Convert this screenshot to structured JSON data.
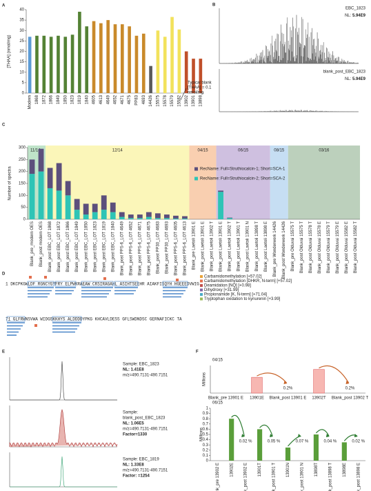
{
  "chart_data": [
    {
      "type": "bar",
      "panel": "A",
      "ylabel": "[THAA] (nmol/mg)",
      "categories": [
        "Modern",
        "1868",
        "1872",
        "1866",
        "1849",
        "1850",
        "1823",
        "1819",
        "1840",
        "4605",
        "4613",
        "4649",
        "4652",
        "4671",
        "4675",
        "PP83",
        "4693",
        "14426",
        "15575",
        "15578",
        "15579",
        "15582",
        "13902",
        "13901",
        "13898"
      ],
      "values": [
        27,
        27.5,
        27.5,
        27,
        27.5,
        27,
        28,
        39,
        32,
        34.5,
        33.5,
        35,
        33,
        33,
        32,
        27.5,
        28.5,
        13,
        30,
        27,
        36.5,
        30.5,
        20,
        16.5,
        16.5
      ],
      "colors": [
        "#5b9bd5",
        "#548235",
        "#548235",
        "#548235",
        "#548235",
        "#548235",
        "#548235",
        "#548235",
        "#548235",
        "#c98a2b",
        "#c98a2b",
        "#c98a2b",
        "#c98a2b",
        "#c98a2b",
        "#c98a2b",
        "#c98a2b",
        "#c98a2b",
        "#595959",
        "#f2e25c",
        "#f2e25c",
        "#f2e25c",
        "#f2e25c",
        "#c0502a",
        "#c0502a",
        "#c0502a"
      ],
      "ylim": [
        0,
        40
      ],
      "yticks": [
        0,
        5,
        10,
        15,
        20,
        25,
        30,
        35,
        40
      ],
      "annotation": [
        "Typical blank",
        "[THAA] = 0.1",
        "nmol/mg"
      ]
    },
    {
      "type": "trace",
      "panel": "B",
      "traces": [
        {
          "name": "EBC_1823",
          "nl_label": "NL:",
          "nl": "5.94E9"
        },
        {
          "name": "blank_post_EBC_1823",
          "nl_label": "NL:",
          "nl": "5.94E9"
        }
      ]
    },
    {
      "type": "stacked-bar",
      "panel": "C",
      "ylabel": "Number of spectra",
      "categories": [
        "Blank_pre_modern OES",
        "Blank_post modern OES",
        "Blank_post EBC_LOT 1868",
        "Blank_post EBC_LOT 1872",
        "Blank_post EBC_LOT 1866",
        "Blank_post EBC_LOT 1849",
        "Blank_post EBC_LOT 1850",
        "Blank_post EBC_LOT 1823",
        "Blank_post EBC_LOT 1819",
        "Blank_post EBC_LOT 1840",
        "Blank_post PPS-6_LOT 4649",
        "Blank_post PPS-6_LOT 4652",
        "Blank_post PPS-6_LOT 4671",
        "Blank_post PPS-6_LOT 4675",
        "Blank_post PP30_LOT 4683",
        "Blank_post PP30_LOT 4693",
        "Blank_post PPS-6_LOT 4605",
        "Blank_post PPS-6_LOT 4613",
        "Blank_pre Laetoli 13901 E",
        "Blank_post Laetoli 13901 E",
        "Blank_post Laetoli 13902 T",
        "Blank_post Laetoli 13901 E",
        "Blank_post Laetoli 13902 T",
        "Blank_post Laetoli 13901 T",
        "Blank_post Laetoli 13901 N",
        "Blank_post Laetoli 13898 T",
        "Blank_post Laetoli 13898 E",
        "Blank_pre Wonderwerk 14426",
        "Blank_post Wonderwerk 14426",
        "Blank_pre Olduvai 15575 T",
        "Blank_post Olduvai 15575 T",
        "Blank_post Olduvai 15578 T",
        "Blank_post Olduvai 15578 E",
        "Blank_post Olduvai 15579 T",
        "Blank_post Olduvai 15579 E",
        "Blank_post Olduvai 15582 E",
        "Blank_post Olduvai 15582 T"
      ],
      "series": [
        {
          "name": "RecName: Full=Struthiocalcin-1; Short=SCA-1",
          "color": "#5c4f7c",
          "values": [
            60,
            95,
            85,
            115,
            60,
            45,
            45,
            35,
            60,
            40,
            20,
            15,
            15,
            20,
            20,
            15,
            12,
            10,
            0,
            0,
            0,
            5,
            2,
            0,
            0,
            0,
            0,
            0,
            0,
            0,
            0,
            0,
            0,
            0,
            0,
            0,
            0
          ]
        },
        {
          "name": "RecName: Full=Struthiocalcin-2; Short=SCA-2",
          "color": "#2ec4b6",
          "values": [
            190,
            200,
            130,
            120,
            100,
            40,
            20,
            30,
            40,
            30,
            10,
            5,
            5,
            10,
            5,
            5,
            3,
            3,
            0,
            0,
            0,
            115,
            5,
            0,
            0,
            0,
            0,
            0,
            0,
            0,
            0,
            0,
            0,
            0,
            0,
            0,
            0
          ]
        }
      ],
      "ylim": [
        0,
        300
      ],
      "yticks": [
        0,
        50,
        100,
        150,
        200,
        250,
        300
      ],
      "periods": [
        {
          "label": "11/14",
          "color": "#bfe3c9",
          "span": 2
        },
        {
          "label": "12/14",
          "color": "#fbf6b9",
          "span": 16
        },
        {
          "label": "04/15",
          "color": "#f9cfb0",
          "span": 3
        },
        {
          "label": "06/15",
          "color": "#cfc0e0",
          "span": 6
        },
        {
          "label": "08/15",
          "color": "#c6def3",
          "span": 2
        },
        {
          "label": "03/16",
          "color": "#bcd0bc",
          "span": 8
        }
      ]
    },
    {
      "type": "sequence",
      "panel": "D",
      "lines": [
        "1  DKCPKGWLDF RGNCYGYFRY ELPWKRAEAW CRSIRAGAHL ASIHTSEEHR AIAKFISQYH HGEEEDVWIG",
        "71 GLFRWNSVWA WIDGSKKHYS ALDDDDYPKG KHCAVLDESS GFLSWDNDSC GERNAFICKC TA"
      ],
      "legend": [
        {
          "label": "Carbamidomethylation [+57.02]",
          "color": "#e8a33a"
        },
        {
          "label": "Carbamidomethylation [DHKR, N-term] [+57.02]",
          "color": "#e36f4d"
        },
        {
          "label": "Deamidation [NQ] [+0.98]",
          "color": "#c0504d"
        },
        {
          "label": "Dihydroxy [+31.99]",
          "color": "#8064a2"
        },
        {
          "label": "Propionamide [K, N-term] [+71.04]",
          "color": "#4bacc6"
        },
        {
          "label": "Tryptophan oxidation to kynurenin [+3.99]",
          "color": "#9bbb59"
        }
      ]
    },
    {
      "type": "trace",
      "panel": "E",
      "samples": [
        {
          "lines": [
            "Sample: EBC_1823",
            "NL: 1.41E8",
            "m/z=490.7131-490.7151"
          ]
        },
        {
          "lines": [
            "Sample:",
            "blank_post_EBC_1823",
            "NL: 1.06E5",
            "m/z=490.7131-490.7151",
            "Factor=1330"
          ]
        },
        {
          "lines": [
            "Sample: EBC_1819",
            "NL: 1.33E8",
            "m/z=490.7131-490.7151",
            "Factor: =1254"
          ]
        }
      ]
    },
    {
      "type": "bar",
      "panel": "F",
      "title": "04/15",
      "ylabel": "Millions",
      "categories": [
        "Blank_pre 13901 E",
        "13901E",
        "Blank_post 13901 E",
        "13902T",
        "Blank_post 13902 T"
      ],
      "values": [
        0,
        2.0,
        0,
        3.0,
        0
      ],
      "color": "#f7b7b2",
      "ylim": [
        0,
        3.5
      ],
      "notes": [
        null,
        null,
        "0.2%",
        null,
        "0.2%"
      ]
    },
    {
      "type": "bar",
      "title": "06/15",
      "ylabel": "Millions",
      "categories": [
        "Blank_pre 13902 E",
        "13902E",
        "Blank_post 13902 E",
        "13901T",
        "Blank_post 13901 T",
        "13901N",
        "Blank_post 13901 N",
        "13898T",
        "Blank_post 13898 T",
        "13898E",
        "Blank_post 13898 E"
      ],
      "values": [
        0,
        0.8,
        0,
        0.6,
        0,
        0.25,
        0,
        0.5,
        0,
        0.35,
        0
      ],
      "color": "#5a9e3a",
      "ylim": [
        0,
        1
      ],
      "yticks": [
        0,
        0.1,
        0.2,
        0.3,
        0.4,
        0.5,
        0.6,
        0.7,
        0.8,
        0.9,
        1
      ],
      "notes": [
        null,
        null,
        "0.02 %",
        null,
        "0.05 %",
        null,
        "0.07 %",
        null,
        "0.04 %",
        null,
        "0.02 %"
      ]
    }
  ]
}
